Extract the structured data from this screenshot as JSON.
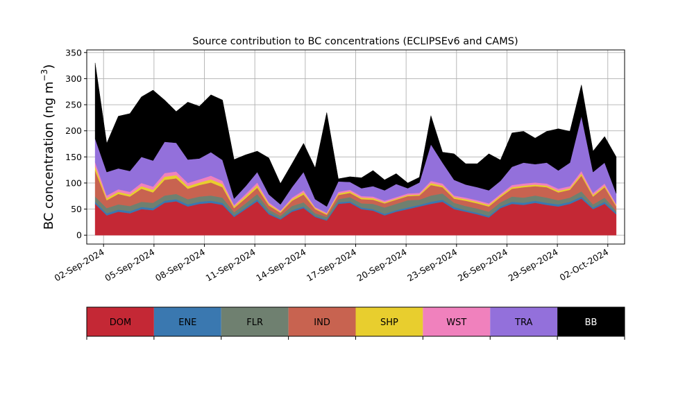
{
  "chart_data": {
    "type": "area",
    "stacked": true,
    "title": "Source contribution to BC concentrations (ECLIPSEv6 and CAMS)",
    "ylabel_prefix": "BC concentration (ng m",
    "ylabel_sup": "−3",
    "ylabel_suffix": ")",
    "xlabel": "",
    "x_start": "2024-09-01T12:00",
    "x_end": "2024-10-02T12:00",
    "xlim": [
      "2024-09-01T00:00",
      "2024-10-03T00:00"
    ],
    "ylim": [
      -17,
      355
    ],
    "yticks": [
      0,
      50,
      100,
      150,
      200,
      250,
      300,
      350
    ],
    "xticks": [
      {
        "date": "2024-09-02",
        "label": "02-Sep-2024"
      },
      {
        "date": "2024-09-05",
        "label": "05-Sep-2024"
      },
      {
        "date": "2024-09-08",
        "label": "08-Sep-2024"
      },
      {
        "date": "2024-09-11",
        "label": "11-Sep-2024"
      },
      {
        "date": "2024-09-14",
        "label": "14-Sep-2024"
      },
      {
        "date": "2024-09-17",
        "label": "17-Sep-2024"
      },
      {
        "date": "2024-09-20",
        "label": "20-Sep-2024"
      },
      {
        "date": "2024-09-23",
        "label": "23-Sep-2024"
      },
      {
        "date": "2024-09-26",
        "label": "26-Sep-2024"
      },
      {
        "date": "2024-09-29",
        "label": "29-Sep-2024"
      },
      {
        "date": "2024-10-02",
        "label": "02-Oct-2024"
      }
    ],
    "grid": true,
    "legend_placement": "bottom colorbar",
    "series": [
      {
        "name": "DOM",
        "color": "#c42835",
        "label_color": "#000000",
        "values": [
          60,
          38,
          45,
          42,
          50,
          48,
          62,
          65,
          55,
          60,
          62,
          58,
          35,
          50,
          65,
          40,
          30,
          45,
          52,
          35,
          28,
          60,
          62,
          50,
          47,
          38,
          45,
          50,
          55,
          60,
          64,
          50,
          45,
          40,
          34,
          52,
          60,
          58,
          62,
          58,
          55,
          60,
          70,
          50,
          60,
          40
        ]
      },
      {
        "name": "ENE",
        "color": "#3a78b0",
        "label_color": "#000000",
        "values": [
          4,
          4,
          4,
          4,
          4,
          4,
          4,
          4,
          4,
          4,
          4,
          4,
          3,
          3,
          4,
          3,
          2,
          3,
          3,
          2,
          2,
          3,
          3,
          3,
          3,
          3,
          3,
          3,
          3,
          4,
          4,
          4,
          3,
          3,
          3,
          3,
          4,
          4,
          4,
          4,
          4,
          4,
          4,
          3,
          4,
          3
        ]
      },
      {
        "name": "FLR",
        "color": "#6f8070",
        "label_color": "#000000",
        "values": [
          10,
          10,
          10,
          10,
          10,
          10,
          10,
          10,
          10,
          10,
          10,
          10,
          6,
          8,
          10,
          6,
          5,
          8,
          8,
          5,
          5,
          6,
          8,
          8,
          10,
          12,
          12,
          14,
          10,
          12,
          12,
          8,
          8,
          8,
          8,
          8,
          10,
          10,
          10,
          10,
          8,
          8,
          10,
          6,
          8,
          4
        ]
      },
      {
        "name": "IND",
        "color": "#c86350",
        "label_color": "#000000",
        "values": [
          50,
          15,
          20,
          18,
          25,
          20,
          30,
          30,
          20,
          22,
          25,
          20,
          8,
          10,
          12,
          8,
          6,
          10,
          15,
          8,
          4,
          8,
          8,
          8,
          8,
          8,
          8,
          8,
          8,
          20,
          12,
          8,
          10,
          10,
          10,
          10,
          15,
          20,
          18,
          20,
          15,
          15,
          30,
          15,
          20,
          8
        ]
      },
      {
        "name": "SHP",
        "color": "#e8ce2e",
        "label_color": "#000000",
        "values": [
          8,
          4,
          4,
          4,
          5,
          5,
          6,
          6,
          5,
          5,
          6,
          6,
          3,
          4,
          5,
          3,
          2,
          3,
          4,
          2,
          2,
          3,
          3,
          3,
          3,
          2,
          2,
          2,
          2,
          4,
          3,
          3,
          3,
          3,
          3,
          3,
          3,
          3,
          3,
          3,
          3,
          3,
          4,
          3,
          3,
          2
        ]
      },
      {
        "name": "WST",
        "color": "#f081bd",
        "label_color": "#000000",
        "values": [
          8,
          5,
          5,
          5,
          6,
          6,
          7,
          7,
          6,
          6,
          7,
          6,
          3,
          4,
          5,
          3,
          2,
          3,
          4,
          2,
          2,
          3,
          3,
          3,
          3,
          3,
          3,
          3,
          3,
          4,
          4,
          3,
          3,
          3,
          3,
          3,
          4,
          4,
          4,
          4,
          4,
          4,
          5,
          4,
          4,
          3
        ]
      },
      {
        "name": "TRA",
        "color": "#9370db",
        "label_color": "#000000",
        "values": [
          45,
          45,
          40,
          40,
          50,
          50,
          60,
          55,
          45,
          40,
          45,
          40,
          12,
          15,
          20,
          15,
          12,
          20,
          35,
          15,
          12,
          20,
          15,
          15,
          20,
          20,
          25,
          10,
          20,
          70,
          40,
          30,
          25,
          25,
          25,
          25,
          35,
          40,
          35,
          40,
          35,
          45,
          105,
          40,
          40,
          20
        ]
      },
      {
        "name": "BB",
        "color": "#000000",
        "label_color": "#ffffff",
        "values": [
          145,
          55,
          100,
          110,
          115,
          135,
          80,
          60,
          110,
          100,
          110,
          115,
          75,
          60,
          40,
          70,
          40,
          45,
          55,
          60,
          180,
          5,
          10,
          20,
          30,
          20,
          20,
          10,
          10,
          55,
          20,
          50,
          40,
          45,
          70,
          40,
          65,
          60,
          50,
          60,
          80,
          60,
          60,
          40,
          50,
          70
        ]
      }
    ]
  }
}
